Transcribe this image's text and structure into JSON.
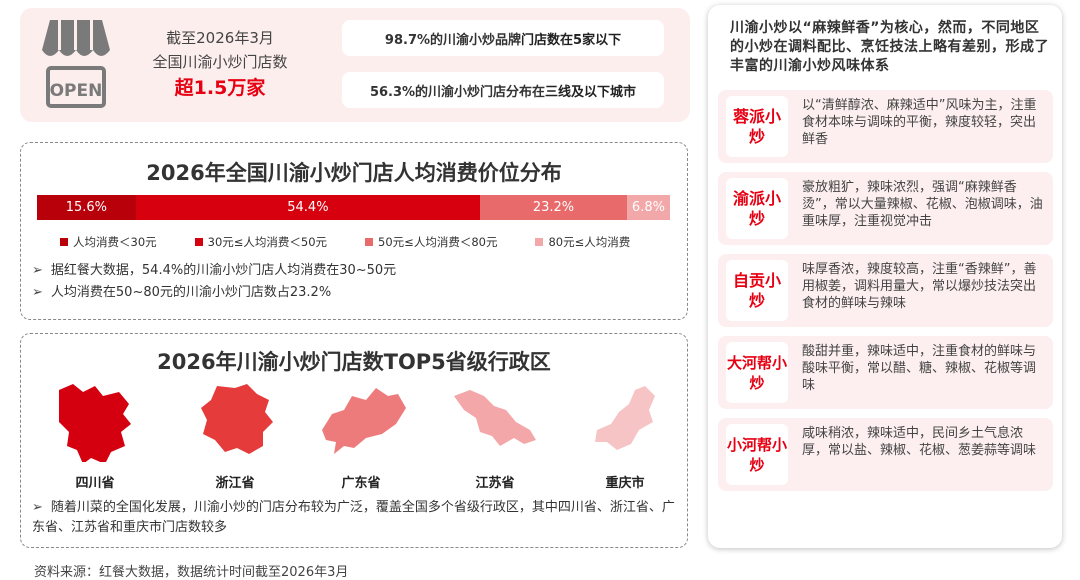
{
  "summary": {
    "icon": "open-shop-icon",
    "shop_sign": "OPEN",
    "date_line": "截至2026年3月",
    "desc_line": "全国川渝小炒门店数",
    "highlight": "超1.5万家",
    "pill1_prefix": "98.7%的川渝小炒品牌",
    "pill1_bold": "门店数在5家以下",
    "pill2_prefix": "56.3%的川渝小炒门店分布在",
    "pill2_bold": "三线及以下城市"
  },
  "chart_data": {
    "type": "bar",
    "stacked": true,
    "orientation": "horizontal",
    "title": "2026年全国川渝小炒门店人均消费价位分布",
    "series": [
      {
        "name": "人均消费＜30元",
        "value": 15.6,
        "label": "15.6%",
        "color": "#b8000b"
      },
      {
        "name": "30元≤人均消费＜50元",
        "value": 54.4,
        "label": "54.4%",
        "color": "#d7000f"
      },
      {
        "name": "50元≤人均消费＜80元",
        "value": 23.2,
        "label": "23.2%",
        "color": "#e96a6b"
      },
      {
        "name": "80元≤人均消费",
        "value": 6.8,
        "label": "6.8%",
        "color": "#f2a8a9"
      }
    ],
    "unit": "%",
    "legend": "bottom"
  },
  "price_notes": [
    "据红餐大数据，54.4%的川渝小炒门店人均消费在30~50元",
    "人均消费在50~80元的川渝小炒门店数占23.2%"
  ],
  "top5": {
    "title": "2026年川渝小炒门店数TOP5省级行政区",
    "provinces": [
      {
        "name": "四川省",
        "color": "#d40010"
      },
      {
        "name": "浙江省",
        "color": "#e53b3b"
      },
      {
        "name": "广东省",
        "color": "#ee7b7c"
      },
      {
        "name": "江苏省",
        "color": "#f4a7a8"
      },
      {
        "name": "重庆市",
        "color": "#f7c4c5"
      }
    ],
    "note": "随着川菜的全国化发展，川渝小炒的门店分布较为广泛，覆盖全国多个省级行政区，其中四川省、浙江省、广东省、江苏省和重庆市门店数较多"
  },
  "source": "资料来源：红餐大数据，数据统计时间截至2026年3月",
  "flavors": {
    "heading": "川渝小炒以“麻辣鲜香”为核心，然而，不同地区的小炒在调料配比、烹饪技法上略有差别，形成了丰富的川渝小炒风味体系",
    "items": [
      {
        "name": "蓉派小炒",
        "desc": "以“清鲜醇浓、麻辣适中”风味为主，注重食材本味与调味的平衡，辣度较轻，突出鲜香"
      },
      {
        "name": "渝派小炒",
        "desc": "豪放粗犷，辣味浓烈，强调“麻辣鲜香烫”，常以大量辣椒、花椒、泡椒调味，油重味厚，注重视觉冲击"
      },
      {
        "name": "自贡小炒",
        "desc": "味厚香浓，辣度较高，注重“香辣鲜”，善用椒姜，调料用量大，常以爆炒技法突出食材的鲜味与辣味"
      },
      {
        "name": "大河帮小炒",
        "desc": "酸甜并重，辣味适中，注重食材的鲜味与酸味平衡，常以醋、糖、辣椒、花椒等调味"
      },
      {
        "name": "小河帮小炒",
        "desc": "咸味稍浓，辣味适中，民间乡土气息浓厚，常以盐、辣椒、花椒、葱姜蒜等调味"
      }
    ]
  },
  "colors": {
    "accent": "#e60012",
    "panel_bg": "#fdeeee"
  }
}
